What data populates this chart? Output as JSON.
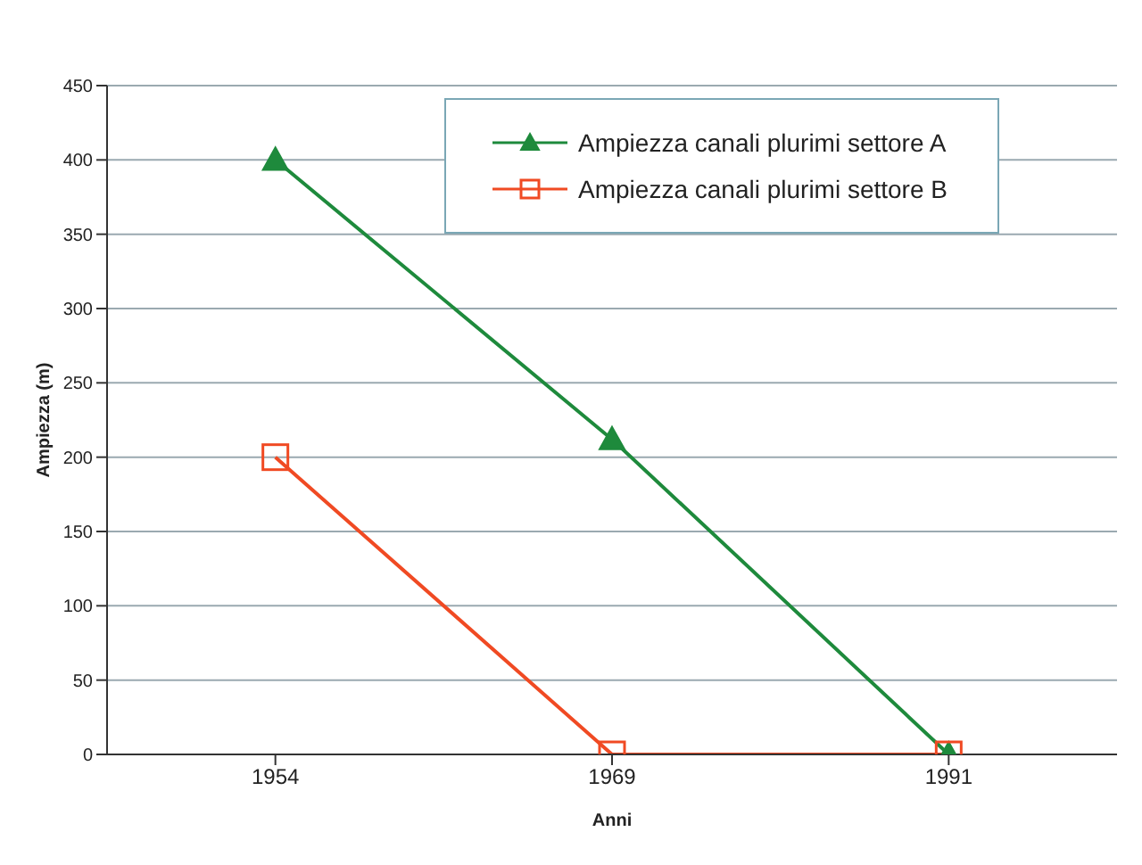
{
  "chart_data": {
    "type": "line",
    "xlabel": "Anni",
    "ylabel": "Ampiezza (m)",
    "categories": [
      "1954",
      "1969",
      "1991"
    ],
    "series": [
      {
        "name": "Ampiezza canali plurimi settore A",
        "color": "#1e8a3c",
        "marker": "triangle",
        "values": [
          400,
          212,
          0
        ]
      },
      {
        "name": "Ampiezza canali plurimi settore B",
        "color": "#f04a23",
        "marker": "square",
        "values": [
          200,
          0,
          0
        ]
      }
    ],
    "ylim": [
      0,
      450
    ],
    "yticks": [
      0,
      50,
      100,
      150,
      200,
      250,
      300,
      350,
      400,
      450
    ],
    "grid": "y",
    "legend": "top right",
    "line_style": "solid"
  }
}
